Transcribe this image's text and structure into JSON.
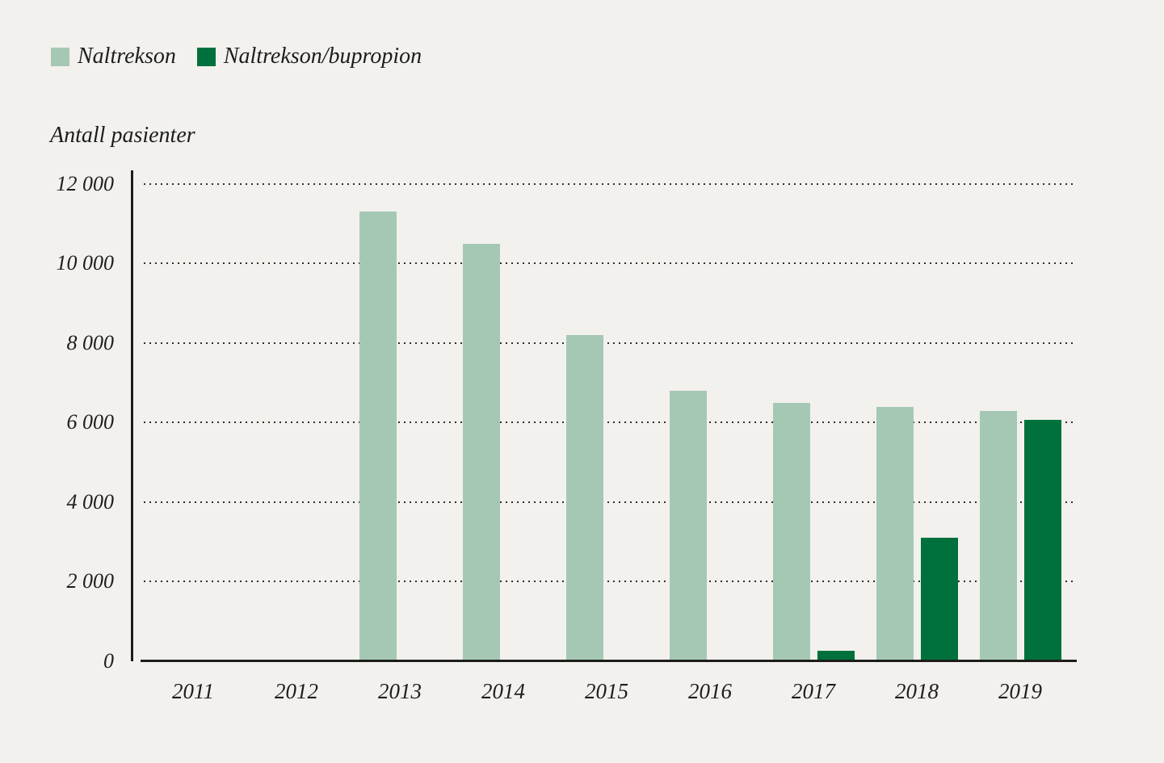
{
  "axis_title": "Antall pasienter",
  "legend": {
    "items": [
      {
        "label": "Naltrekson"
      },
      {
        "label": "Naltrekson/bupropion"
      }
    ]
  },
  "chart_data": {
    "type": "bar",
    "title": "",
    "xlabel": "",
    "ylabel": "Antall pasienter",
    "categories": [
      "2011",
      "2012",
      "2013",
      "2014",
      "2015",
      "2016",
      "2017",
      "2018",
      "2019"
    ],
    "series": [
      {
        "name": "Naltrekson",
        "color": "#a5c8b4",
        "values": [
          30,
          40,
          11300,
          10500,
          8200,
          6800,
          6500,
          6400,
          6300
        ]
      },
      {
        "name": "Naltrekson/bupropion",
        "color": "#00713c",
        "values": [
          0,
          0,
          0,
          0,
          0,
          0,
          270,
          3100,
          6080
        ]
      }
    ],
    "ylim": [
      0,
      12000
    ],
    "yticks": [
      0,
      2000,
      4000,
      6000,
      8000,
      10000,
      12000
    ],
    "ytick_labels": [
      "0",
      "2 000",
      "4 000",
      "6 000",
      "8 000",
      "10 000",
      "12 000"
    ],
    "grid": "horizontal-dotted",
    "legend_position": "top-left"
  },
  "colors": {
    "background": "#f2f1ed",
    "bar_light": "#a5c8b4",
    "bar_dark": "#00713c",
    "axis": "#1d1d1b",
    "text": "#1d1d1b",
    "grid_dot": "#2e2e2b"
  }
}
